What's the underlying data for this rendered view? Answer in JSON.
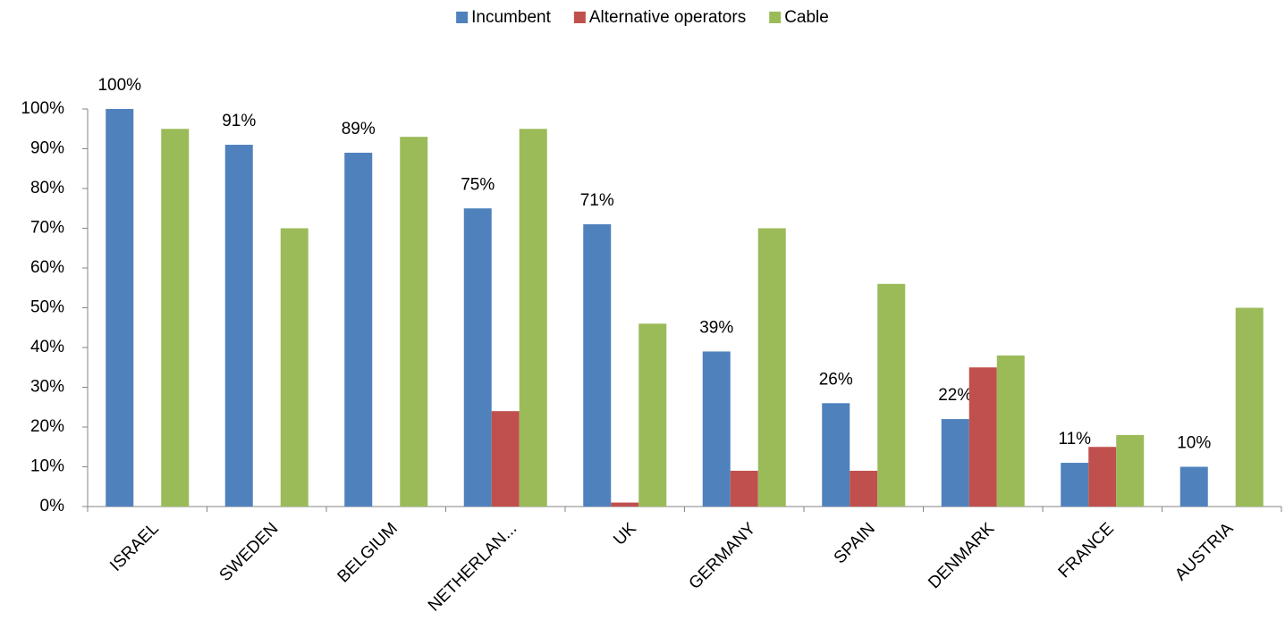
{
  "chart_data": {
    "type": "bar",
    "categories": [
      "ISRAEL",
      "SWEDEN",
      "BELGIUM",
      "NETHERLAN...",
      "UK",
      "GERMANY",
      "SPAIN",
      "DENMARK",
      "FRANCE",
      "AUSTRIA"
    ],
    "series": [
      {
        "name": "Incumbent",
        "color": "#4f81bd",
        "values": [
          100,
          91,
          89,
          75,
          71,
          39,
          26,
          22,
          11,
          10
        ],
        "value_labels": [
          "100%",
          "91%",
          "89%",
          "75%",
          "71%",
          "39%",
          "26%",
          "22%",
          "11%",
          "10%"
        ]
      },
      {
        "name": "Alternative operators",
        "color": "#c0504d",
        "values": [
          null,
          null,
          null,
          24,
          1,
          9,
          9,
          35,
          15,
          null
        ]
      },
      {
        "name": "Cable",
        "color": "#9bbb59",
        "values": [
          95,
          70,
          93,
          95,
          46,
          70,
          56,
          38,
          18,
          50
        ]
      }
    ],
    "ylim": [
      0,
      100
    ],
    "yticks": [
      {
        "value": 0,
        "label": "0%"
      },
      {
        "value": 10,
        "label": "10%"
      },
      {
        "value": 20,
        "label": "20%"
      },
      {
        "value": 30,
        "label": "30%"
      },
      {
        "value": 40,
        "label": "40%"
      },
      {
        "value": 50,
        "label": "50%"
      },
      {
        "value": 60,
        "label": "60%"
      },
      {
        "value": 70,
        "label": "70%"
      },
      {
        "value": 80,
        "label": "80%"
      },
      {
        "value": 90,
        "label": "90%"
      },
      {
        "value": 100,
        "label": "100%"
      }
    ],
    "legend": "top"
  }
}
